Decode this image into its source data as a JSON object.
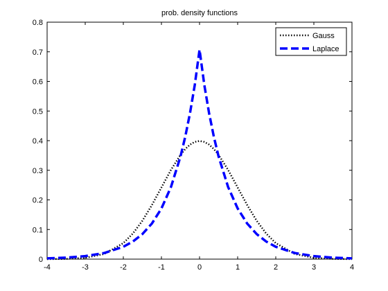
{
  "chart_data": {
    "type": "line",
    "title": "prob. density functions",
    "xlabel": "",
    "ylabel": "",
    "xlim": [
      -4,
      4
    ],
    "ylim": [
      0,
      0.8
    ],
    "xticks": [
      -4,
      -3,
      -2,
      -1,
      0,
      1,
      2,
      3,
      4
    ],
    "xtick_labels": [
      "-4",
      "-3",
      "-2",
      "-1",
      "0",
      "1",
      "2",
      "3",
      "4"
    ],
    "yticks": [
      0,
      0.1,
      0.2,
      0.3,
      0.4,
      0.5,
      0.6,
      0.7,
      0.8
    ],
    "ytick_labels": [
      "0",
      "0.1",
      "0.2",
      "0.3",
      "0.4",
      "0.5",
      "0.6",
      "0.7",
      "0.8"
    ],
    "grid": false,
    "legend_position": "top-right",
    "x": [
      -4,
      -3.5,
      -3,
      -2.5,
      -2,
      -1.75,
      -1.5,
      -1.25,
      -1,
      -0.75,
      -0.5,
      -0.375,
      -0.25,
      -0.125,
      0,
      0.125,
      0.25,
      0.375,
      0.5,
      0.75,
      1,
      1.25,
      1.5,
      1.75,
      2,
      2.5,
      3,
      3.5,
      4
    ],
    "series": [
      {
        "name": "Gauss",
        "color": "#000000",
        "style": "dotted",
        "values": [
          0.0001,
          0.0009,
          0.0044,
          0.0175,
          0.054,
          0.0863,
          0.1295,
          0.1826,
          0.242,
          0.3011,
          0.3521,
          0.3718,
          0.3867,
          0.3958,
          0.3989,
          0.3958,
          0.3867,
          0.3718,
          0.3521,
          0.3011,
          0.242,
          0.1826,
          0.1295,
          0.0863,
          0.054,
          0.0175,
          0.0044,
          0.0009,
          0.0001
        ]
      },
      {
        "name": "Laplace",
        "color": "#0000ff",
        "style": "dashed",
        "values": [
          0.0025,
          0.005,
          0.0102,
          0.0206,
          0.0417,
          0.0594,
          0.0845,
          0.1202,
          0.1711,
          0.2434,
          0.3464,
          0.4133,
          0.4931,
          0.5882,
          0.7071,
          0.5882,
          0.4931,
          0.4133,
          0.3464,
          0.2434,
          0.1711,
          0.1202,
          0.0845,
          0.0594,
          0.0417,
          0.0206,
          0.0102,
          0.005,
          0.0025
        ]
      }
    ]
  }
}
